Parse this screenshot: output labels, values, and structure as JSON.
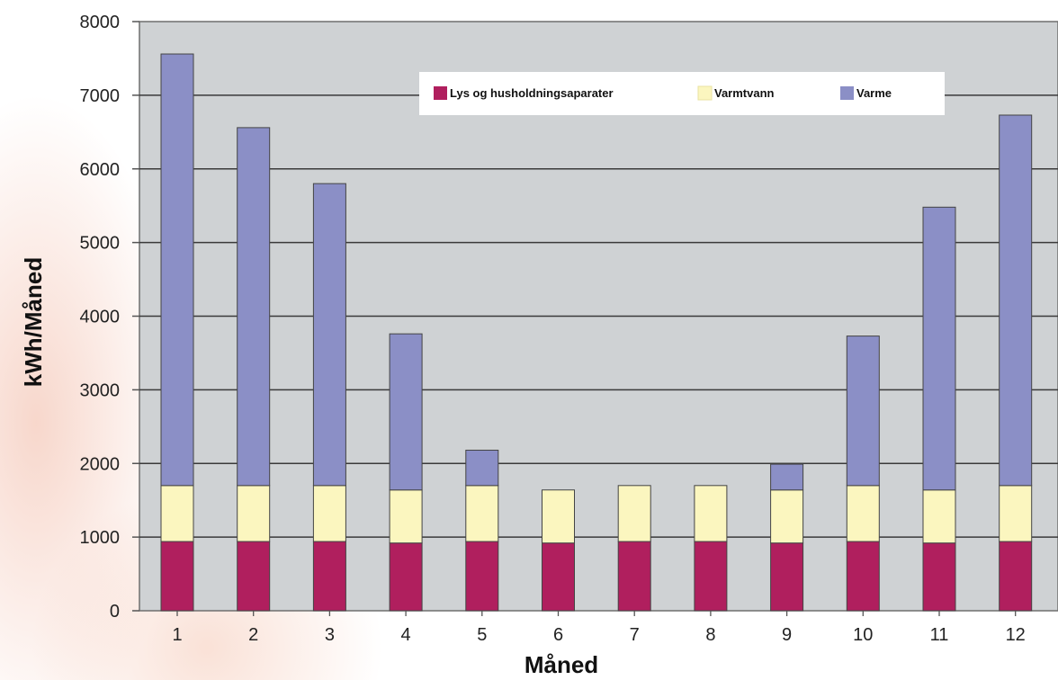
{
  "chart_data": {
    "type": "bar",
    "stacked": true,
    "categories": [
      "1",
      "2",
      "3",
      "4",
      "5",
      "6",
      "7",
      "8",
      "9",
      "10",
      "11",
      "12"
    ],
    "series": [
      {
        "name": "Lys og husholdningsaparater",
        "color": "#b01f5e",
        "values": [
          940,
          940,
          940,
          920,
          940,
          920,
          940,
          940,
          920,
          940,
          920,
          940
        ]
      },
      {
        "name": "Varmtvann",
        "color": "#fbf6bf",
        "values": [
          760,
          760,
          760,
          720,
          760,
          720,
          760,
          760,
          720,
          760,
          720,
          760
        ]
      },
      {
        "name": "Varme",
        "color": "#8b8fc6",
        "values": [
          5860,
          4860,
          4100,
          2120,
          480,
          0,
          0,
          0,
          350,
          2030,
          3840,
          5030
        ]
      }
    ],
    "title": "",
    "xlabel": "Måned",
    "ylabel": "kWh/Måned",
    "ylim": [
      0,
      8000
    ],
    "yticks": [
      "0",
      "1000",
      "2000",
      "3000",
      "4000",
      "5000",
      "6000",
      "7000",
      "8000"
    ],
    "grid": true,
    "legend_position": "top-right",
    "plot_background": "#cfd2d4"
  }
}
